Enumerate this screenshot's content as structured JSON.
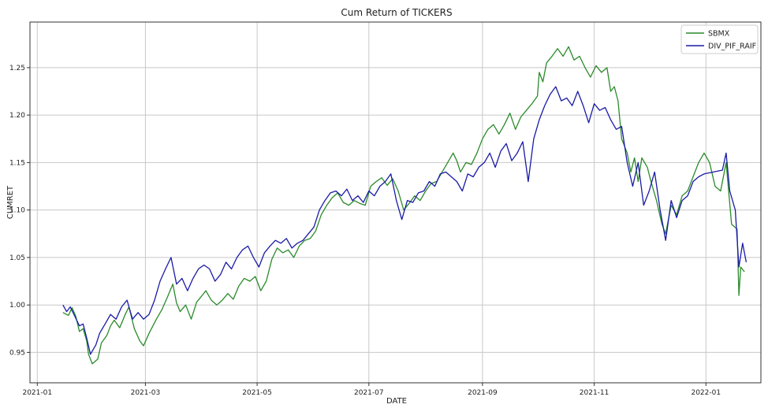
{
  "chart_data": {
    "type": "line",
    "title": "Cum Return of TICKERS",
    "xlabel": "DATE",
    "ylabel": "CUMRET",
    "x_type": "date",
    "xlim": [
      "2020-12-28",
      "2022-01-31"
    ],
    "ylim": [
      0.918,
      1.298
    ],
    "grid": true,
    "legend_position": "top-right",
    "x_ticks": [
      "2021-01-01",
      "2021-03-01",
      "2021-05-01",
      "2021-07-01",
      "2021-09-01",
      "2021-11-01",
      "2022-01-01"
    ],
    "x_tick_labels": [
      "2021-01",
      "2021-03",
      "2021-05",
      "2021-07",
      "2021-09",
      "2021-11",
      "2022-01"
    ],
    "y_ticks": [
      0.95,
      1.0,
      1.05,
      1.1,
      1.15,
      1.2,
      1.25
    ],
    "y_tick_labels": [
      "0.95",
      "1.00",
      "1.05",
      "1.10",
      "1.15",
      "1.20",
      "1.25"
    ],
    "series": [
      {
        "name": "SBMX",
        "color": "#2a8a2a",
        "points": [
          [
            "2021-01-15",
            0.992
          ],
          [
            "2021-01-18",
            0.989
          ],
          [
            "2021-01-20",
            0.997
          ],
          [
            "2021-01-22",
            0.988
          ],
          [
            "2021-01-24",
            0.972
          ],
          [
            "2021-01-26",
            0.975
          ],
          [
            "2021-01-28",
            0.962
          ],
          [
            "2021-01-29",
            0.948
          ],
          [
            "2021-01-31",
            0.938
          ],
          [
            "2021-02-03",
            0.943
          ],
          [
            "2021-02-05",
            0.96
          ],
          [
            "2021-02-08",
            0.968
          ],
          [
            "2021-02-10",
            0.978
          ],
          [
            "2021-02-12",
            0.984
          ],
          [
            "2021-02-15",
            0.976
          ],
          [
            "2021-02-18",
            0.99
          ],
          [
            "2021-02-20",
            0.998
          ],
          [
            "2021-02-23",
            0.975
          ],
          [
            "2021-02-26",
            0.962
          ],
          [
            "2021-02-28",
            0.957
          ],
          [
            "2021-03-03",
            0.97
          ],
          [
            "2021-03-07",
            0.985
          ],
          [
            "2021-03-10",
            0.995
          ],
          [
            "2021-03-13",
            1.008
          ],
          [
            "2021-03-16",
            1.022
          ],
          [
            "2021-03-18",
            1.002
          ],
          [
            "2021-03-20",
            0.993
          ],
          [
            "2021-03-23",
            1.0
          ],
          [
            "2021-03-26",
            0.985
          ],
          [
            "2021-03-29",
            1.003
          ],
          [
            "2021-04-01",
            1.01
          ],
          [
            "2021-04-03",
            1.015
          ],
          [
            "2021-04-06",
            1.005
          ],
          [
            "2021-04-09",
            1.0
          ],
          [
            "2021-04-12",
            1.005
          ],
          [
            "2021-04-15",
            1.012
          ],
          [
            "2021-04-18",
            1.006
          ],
          [
            "2021-04-21",
            1.02
          ],
          [
            "2021-04-24",
            1.028
          ],
          [
            "2021-04-27",
            1.025
          ],
          [
            "2021-04-30",
            1.03
          ],
          [
            "2021-05-03",
            1.015
          ],
          [
            "2021-05-06",
            1.025
          ],
          [
            "2021-05-09",
            1.048
          ],
          [
            "2021-05-12",
            1.06
          ],
          [
            "2021-05-15",
            1.055
          ],
          [
            "2021-05-18",
            1.058
          ],
          [
            "2021-05-21",
            1.05
          ],
          [
            "2021-05-24",
            1.062
          ],
          [
            "2021-05-27",
            1.068
          ],
          [
            "2021-05-30",
            1.07
          ],
          [
            "2021-06-02",
            1.078
          ],
          [
            "2021-06-05",
            1.095
          ],
          [
            "2021-06-08",
            1.105
          ],
          [
            "2021-06-11",
            1.113
          ],
          [
            "2021-06-14",
            1.118
          ],
          [
            "2021-06-17",
            1.108
          ],
          [
            "2021-06-20",
            1.105
          ],
          [
            "2021-06-23",
            1.11
          ],
          [
            "2021-06-26",
            1.107
          ],
          [
            "2021-06-29",
            1.105
          ],
          [
            "2021-07-02",
            1.125
          ],
          [
            "2021-07-05",
            1.13
          ],
          [
            "2021-07-08",
            1.134
          ],
          [
            "2021-07-11",
            1.126
          ],
          [
            "2021-07-14",
            1.133
          ],
          [
            "2021-07-17",
            1.12
          ],
          [
            "2021-07-20",
            1.1
          ],
          [
            "2021-07-23",
            1.107
          ],
          [
            "2021-07-26",
            1.115
          ],
          [
            "2021-07-29",
            1.11
          ],
          [
            "2021-08-01",
            1.12
          ],
          [
            "2021-08-04",
            1.128
          ],
          [
            "2021-08-07",
            1.13
          ],
          [
            "2021-08-10",
            1.14
          ],
          [
            "2021-08-13",
            1.15
          ],
          [
            "2021-08-16",
            1.16
          ],
          [
            "2021-08-18",
            1.152
          ],
          [
            "2021-08-20",
            1.14
          ],
          [
            "2021-08-23",
            1.15
          ],
          [
            "2021-08-26",
            1.148
          ],
          [
            "2021-08-29",
            1.16
          ],
          [
            "2021-09-01",
            1.175
          ],
          [
            "2021-09-04",
            1.185
          ],
          [
            "2021-09-07",
            1.19
          ],
          [
            "2021-09-10",
            1.18
          ],
          [
            "2021-09-13",
            1.19
          ],
          [
            "2021-09-16",
            1.202
          ],
          [
            "2021-09-19",
            1.185
          ],
          [
            "2021-09-22",
            1.198
          ],
          [
            "2021-09-25",
            1.205
          ],
          [
            "2021-09-28",
            1.212
          ],
          [
            "2021-10-01",
            1.22
          ],
          [
            "2021-10-02",
            1.245
          ],
          [
            "2021-10-04",
            1.235
          ],
          [
            "2021-10-06",
            1.255
          ],
          [
            "2021-10-09",
            1.262
          ],
          [
            "2021-10-12",
            1.27
          ],
          [
            "2021-10-15",
            1.262
          ],
          [
            "2021-10-18",
            1.272
          ],
          [
            "2021-10-21",
            1.258
          ],
          [
            "2021-10-24",
            1.262
          ],
          [
            "2021-10-27",
            1.25
          ],
          [
            "2021-10-30",
            1.24
          ],
          [
            "2021-11-02",
            1.252
          ],
          [
            "2021-11-05",
            1.245
          ],
          [
            "2021-11-08",
            1.25
          ],
          [
            "2021-11-10",
            1.225
          ],
          [
            "2021-11-12",
            1.23
          ],
          [
            "2021-11-14",
            1.215
          ],
          [
            "2021-11-16",
            1.175
          ],
          [
            "2021-11-19",
            1.16
          ],
          [
            "2021-11-21",
            1.14
          ],
          [
            "2021-11-23",
            1.155
          ],
          [
            "2021-11-25",
            1.13
          ],
          [
            "2021-11-27",
            1.155
          ],
          [
            "2021-11-30",
            1.145
          ],
          [
            "2021-12-02",
            1.13
          ],
          [
            "2021-12-05",
            1.11
          ],
          [
            "2021-12-08",
            1.085
          ],
          [
            "2021-12-10",
            1.075
          ],
          [
            "2021-12-13",
            1.105
          ],
          [
            "2021-12-16",
            1.095
          ],
          [
            "2021-12-19",
            1.115
          ],
          [
            "2021-12-22",
            1.12
          ],
          [
            "2021-12-25",
            1.135
          ],
          [
            "2021-12-28",
            1.15
          ],
          [
            "2021-12-31",
            1.16
          ],
          [
            "2022-01-03",
            1.15
          ],
          [
            "2022-01-06",
            1.125
          ],
          [
            "2022-01-09",
            1.12
          ],
          [
            "2022-01-12",
            1.15
          ],
          [
            "2022-01-15",
            1.085
          ],
          [
            "2022-01-18",
            1.08
          ],
          [
            "2022-01-19",
            1.01
          ],
          [
            "2022-01-20",
            1.04
          ],
          [
            "2022-01-22",
            1.035
          ]
        ]
      },
      {
        "name": "DIV_PIF_RAIF",
        "color": "#1a1aa6",
        "points": [
          [
            "2021-01-15",
            1.0
          ],
          [
            "2021-01-17",
            0.993
          ],
          [
            "2021-01-19",
            0.998
          ],
          [
            "2021-01-21",
            0.99
          ],
          [
            "2021-01-24",
            0.978
          ],
          [
            "2021-01-26",
            0.98
          ],
          [
            "2021-01-28",
            0.965
          ],
          [
            "2021-01-30",
            0.948
          ],
          [
            "2021-02-02",
            0.958
          ],
          [
            "2021-02-04",
            0.97
          ],
          [
            "2021-02-07",
            0.98
          ],
          [
            "2021-02-10",
            0.99
          ],
          [
            "2021-02-13",
            0.985
          ],
          [
            "2021-02-16",
            0.998
          ],
          [
            "2021-02-19",
            1.005
          ],
          [
            "2021-02-22",
            0.985
          ],
          [
            "2021-02-25",
            0.992
          ],
          [
            "2021-02-28",
            0.985
          ],
          [
            "2021-03-03",
            0.99
          ],
          [
            "2021-03-06",
            1.005
          ],
          [
            "2021-03-09",
            1.025
          ],
          [
            "2021-03-12",
            1.038
          ],
          [
            "2021-03-15",
            1.05
          ],
          [
            "2021-03-18",
            1.022
          ],
          [
            "2021-03-21",
            1.028
          ],
          [
            "2021-03-24",
            1.015
          ],
          [
            "2021-03-27",
            1.028
          ],
          [
            "2021-03-30",
            1.038
          ],
          [
            "2021-04-02",
            1.042
          ],
          [
            "2021-04-05",
            1.038
          ],
          [
            "2021-04-08",
            1.025
          ],
          [
            "2021-04-11",
            1.032
          ],
          [
            "2021-04-14",
            1.045
          ],
          [
            "2021-04-17",
            1.038
          ],
          [
            "2021-04-20",
            1.05
          ],
          [
            "2021-04-23",
            1.058
          ],
          [
            "2021-04-26",
            1.062
          ],
          [
            "2021-04-29",
            1.05
          ],
          [
            "2021-05-02",
            1.04
          ],
          [
            "2021-05-05",
            1.055
          ],
          [
            "2021-05-08",
            1.062
          ],
          [
            "2021-05-11",
            1.068
          ],
          [
            "2021-05-14",
            1.065
          ],
          [
            "2021-05-17",
            1.07
          ],
          [
            "2021-05-20",
            1.06
          ],
          [
            "2021-05-23",
            1.065
          ],
          [
            "2021-05-26",
            1.068
          ],
          [
            "2021-05-29",
            1.075
          ],
          [
            "2021-06-01",
            1.082
          ],
          [
            "2021-06-04",
            1.1
          ],
          [
            "2021-06-07",
            1.11
          ],
          [
            "2021-06-10",
            1.118
          ],
          [
            "2021-06-13",
            1.12
          ],
          [
            "2021-06-16",
            1.115
          ],
          [
            "2021-06-19",
            1.122
          ],
          [
            "2021-06-22",
            1.11
          ],
          [
            "2021-06-25",
            1.115
          ],
          [
            "2021-06-28",
            1.108
          ],
          [
            "2021-07-01",
            1.12
          ],
          [
            "2021-07-04",
            1.115
          ],
          [
            "2021-07-07",
            1.125
          ],
          [
            "2021-07-10",
            1.13
          ],
          [
            "2021-07-13",
            1.138
          ],
          [
            "2021-07-16",
            1.11
          ],
          [
            "2021-07-19",
            1.09
          ],
          [
            "2021-07-22",
            1.11
          ],
          [
            "2021-07-25",
            1.108
          ],
          [
            "2021-07-28",
            1.118
          ],
          [
            "2021-07-31",
            1.12
          ],
          [
            "2021-08-03",
            1.13
          ],
          [
            "2021-08-06",
            1.125
          ],
          [
            "2021-08-09",
            1.138
          ],
          [
            "2021-08-12",
            1.14
          ],
          [
            "2021-08-15",
            1.135
          ],
          [
            "2021-08-18",
            1.13
          ],
          [
            "2021-08-21",
            1.12
          ],
          [
            "2021-08-24",
            1.138
          ],
          [
            "2021-08-27",
            1.135
          ],
          [
            "2021-08-30",
            1.145
          ],
          [
            "2021-09-02",
            1.15
          ],
          [
            "2021-09-05",
            1.16
          ],
          [
            "2021-09-08",
            1.145
          ],
          [
            "2021-09-11",
            1.162
          ],
          [
            "2021-09-14",
            1.17
          ],
          [
            "2021-09-17",
            1.152
          ],
          [
            "2021-09-20",
            1.16
          ],
          [
            "2021-09-23",
            1.172
          ],
          [
            "2021-09-26",
            1.13
          ],
          [
            "2021-09-29",
            1.175
          ],
          [
            "2021-10-02",
            1.195
          ],
          [
            "2021-10-05",
            1.21
          ],
          [
            "2021-10-08",
            1.222
          ],
          [
            "2021-10-11",
            1.23
          ],
          [
            "2021-10-14",
            1.215
          ],
          [
            "2021-10-17",
            1.218
          ],
          [
            "2021-10-20",
            1.21
          ],
          [
            "2021-10-23",
            1.225
          ],
          [
            "2021-10-26",
            1.21
          ],
          [
            "2021-10-29",
            1.192
          ],
          [
            "2021-11-01",
            1.212
          ],
          [
            "2021-11-04",
            1.205
          ],
          [
            "2021-11-07",
            1.208
          ],
          [
            "2021-11-10",
            1.195
          ],
          [
            "2021-11-13",
            1.185
          ],
          [
            "2021-11-16",
            1.188
          ],
          [
            "2021-11-19",
            1.15
          ],
          [
            "2021-11-22",
            1.125
          ],
          [
            "2021-11-25",
            1.15
          ],
          [
            "2021-11-28",
            1.105
          ],
          [
            "2021-12-01",
            1.12
          ],
          [
            "2021-12-04",
            1.14
          ],
          [
            "2021-12-07",
            1.1
          ],
          [
            "2021-12-10",
            1.068
          ],
          [
            "2021-12-13",
            1.11
          ],
          [
            "2021-12-16",
            1.092
          ],
          [
            "2021-12-19",
            1.11
          ],
          [
            "2021-12-22",
            1.115
          ],
          [
            "2021-12-25",
            1.13
          ],
          [
            "2021-12-28",
            1.135
          ],
          [
            "2021-12-31",
            1.138
          ],
          [
            "2022-01-10",
            1.142
          ],
          [
            "2022-01-12",
            1.16
          ],
          [
            "2022-01-14",
            1.12
          ],
          [
            "2022-01-17",
            1.1
          ],
          [
            "2022-01-19",
            1.04
          ],
          [
            "2022-01-21",
            1.065
          ],
          [
            "2022-01-23",
            1.045
          ]
        ]
      }
    ]
  }
}
